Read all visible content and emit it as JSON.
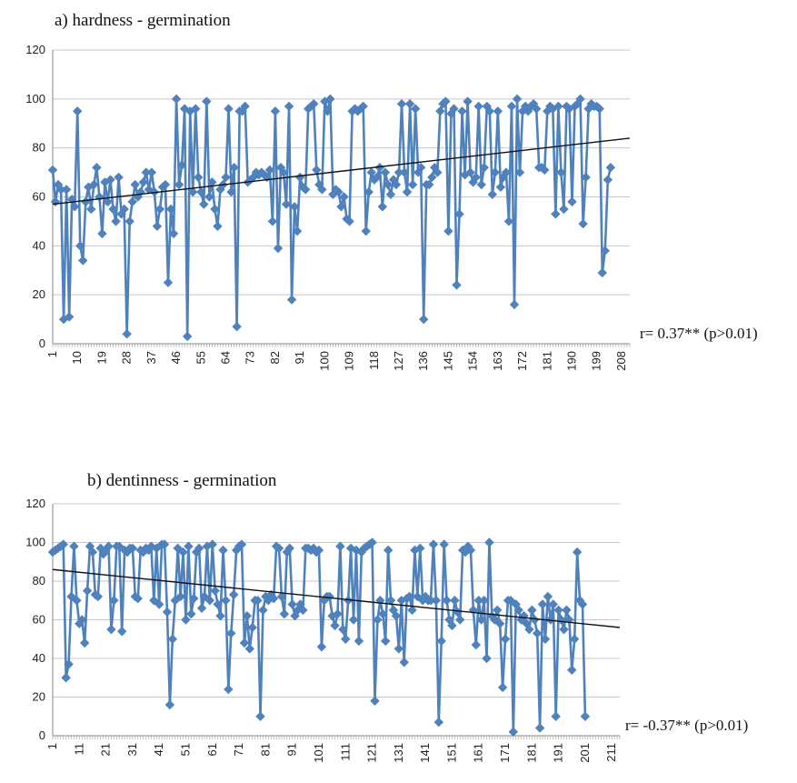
{
  "chart_data": [
    {
      "type": "line",
      "title": "a)   hardness - germination",
      "correlation": "r= 0.37** (p>0.01)",
      "ylim": [
        0,
        120
      ],
      "yticks": [
        0,
        20,
        40,
        60,
        80,
        100,
        120
      ],
      "xlim": [
        1,
        211
      ],
      "xticks": [
        1,
        10,
        19,
        28,
        37,
        46,
        55,
        64,
        73,
        82,
        91,
        100,
        109,
        118,
        127,
        136,
        145,
        154,
        163,
        172,
        181,
        190,
        199,
        208
      ],
      "grid": true,
      "legend": "none",
      "color": "#4f81bd",
      "trendline": {
        "x": [
          1,
          211
        ],
        "y": [
          57,
          84
        ]
      },
      "values": [
        71,
        58,
        65,
        63,
        10,
        63,
        11,
        59,
        56,
        95,
        40,
        34,
        58,
        64,
        55,
        65,
        72,
        60,
        45,
        66,
        58,
        67,
        55,
        50,
        68,
        53,
        55,
        4,
        50,
        58,
        65,
        60,
        62,
        66,
        70,
        63,
        70,
        62,
        48,
        55,
        64,
        65,
        25,
        55,
        45,
        100,
        65,
        73,
        96,
        3,
        95,
        62,
        96,
        68,
        62,
        57,
        99,
        60,
        66,
        55,
        48,
        63,
        65,
        68,
        96,
        62,
        72,
        7,
        95,
        95,
        97,
        66,
        67,
        68,
        70,
        69,
        70,
        69,
        68,
        71,
        50,
        95,
        39,
        72,
        70,
        57,
        97,
        18,
        56,
        46,
        68,
        64,
        63,
        96,
        97,
        98,
        71,
        65,
        63,
        99,
        95,
        100,
        61,
        63,
        62,
        56,
        60,
        51,
        50,
        95,
        96,
        95,
        96,
        97,
        46,
        62,
        70,
        67,
        68,
        72,
        56,
        70,
        65,
        61,
        67,
        65,
        70,
        98,
        70,
        62,
        98,
        65,
        96,
        70,
        72,
        10,
        65,
        65,
        68,
        72,
        70,
        95,
        98,
        99,
        46,
        94,
        96,
        24,
        53,
        95,
        69,
        99,
        70,
        66,
        68,
        97,
        65,
        72,
        97,
        95,
        61,
        70,
        95,
        64,
        68,
        70,
        50,
        97,
        16,
        100,
        70,
        95,
        97,
        95,
        97,
        98,
        96,
        72,
        72,
        71,
        95,
        97,
        96,
        53,
        97,
        70,
        55,
        97,
        96,
        58,
        97,
        98,
        100,
        49,
        68,
        96,
        98,
        97,
        97,
        96,
        29,
        38,
        67,
        72
      ]
    },
    {
      "type": "line",
      "title": "b)   dentinness - germination",
      "correlation": "r= -0.37** (p>0.01)",
      "ylim": [
        0,
        120
      ],
      "yticks": [
        0,
        20,
        40,
        60,
        80,
        100,
        120
      ],
      "xlim": [
        1,
        214
      ],
      "xticks": [
        1,
        11,
        21,
        31,
        41,
        51,
        61,
        71,
        81,
        91,
        101,
        111,
        121,
        131,
        141,
        151,
        161,
        171,
        181,
        191,
        201,
        211
      ],
      "grid": true,
      "legend": "none",
      "color": "#4f81bd",
      "trendline": {
        "x": [
          1,
          214
        ],
        "y": [
          86,
          56
        ]
      },
      "values": [
        95,
        96,
        97,
        98,
        99,
        30,
        37,
        72,
        98,
        70,
        58,
        60,
        48,
        75,
        98,
        95,
        73,
        72,
        97,
        94,
        96,
        98,
        55,
        70,
        98,
        98,
        54,
        96,
        95,
        97,
        97,
        72,
        71,
        96,
        95,
        97,
        96,
        98,
        70,
        97,
        68,
        99,
        99,
        64,
        16,
        50,
        70,
        97,
        72,
        95,
        60,
        98,
        63,
        71,
        95,
        97,
        66,
        72,
        98,
        70,
        99,
        75,
        68,
        62,
        96,
        70,
        24,
        53,
        73,
        96,
        98,
        99,
        48,
        62,
        45,
        56,
        70,
        70,
        10,
        65,
        72,
        70,
        73,
        71,
        98,
        97,
        72,
        63,
        95,
        97,
        68,
        62,
        65,
        68,
        65,
        97,
        97,
        96,
        97,
        95,
        96,
        46,
        70,
        72,
        72,
        62,
        57,
        63,
        98,
        55,
        50,
        70,
        97,
        60,
        96,
        49,
        95,
        97,
        98,
        99,
        100,
        18,
        60,
        70,
        63,
        49,
        96,
        70,
        65,
        62,
        45,
        70,
        38,
        71,
        72,
        65,
        96,
        72,
        97,
        70,
        72,
        70,
        70,
        99,
        70,
        7,
        49,
        99,
        70,
        60,
        57,
        70,
        64,
        60,
        96,
        95,
        98,
        96,
        65,
        47,
        70,
        60,
        70,
        40,
        100,
        62,
        60,
        65,
        58,
        25,
        50,
        70,
        70,
        2,
        68,
        65,
        60,
        62,
        58,
        55,
        65,
        60,
        53,
        4,
        68,
        50,
        72,
        60,
        68,
        10,
        65,
        60,
        55,
        65,
        60,
        34,
        50,
        95,
        70,
        68,
        10
      ]
    }
  ]
}
